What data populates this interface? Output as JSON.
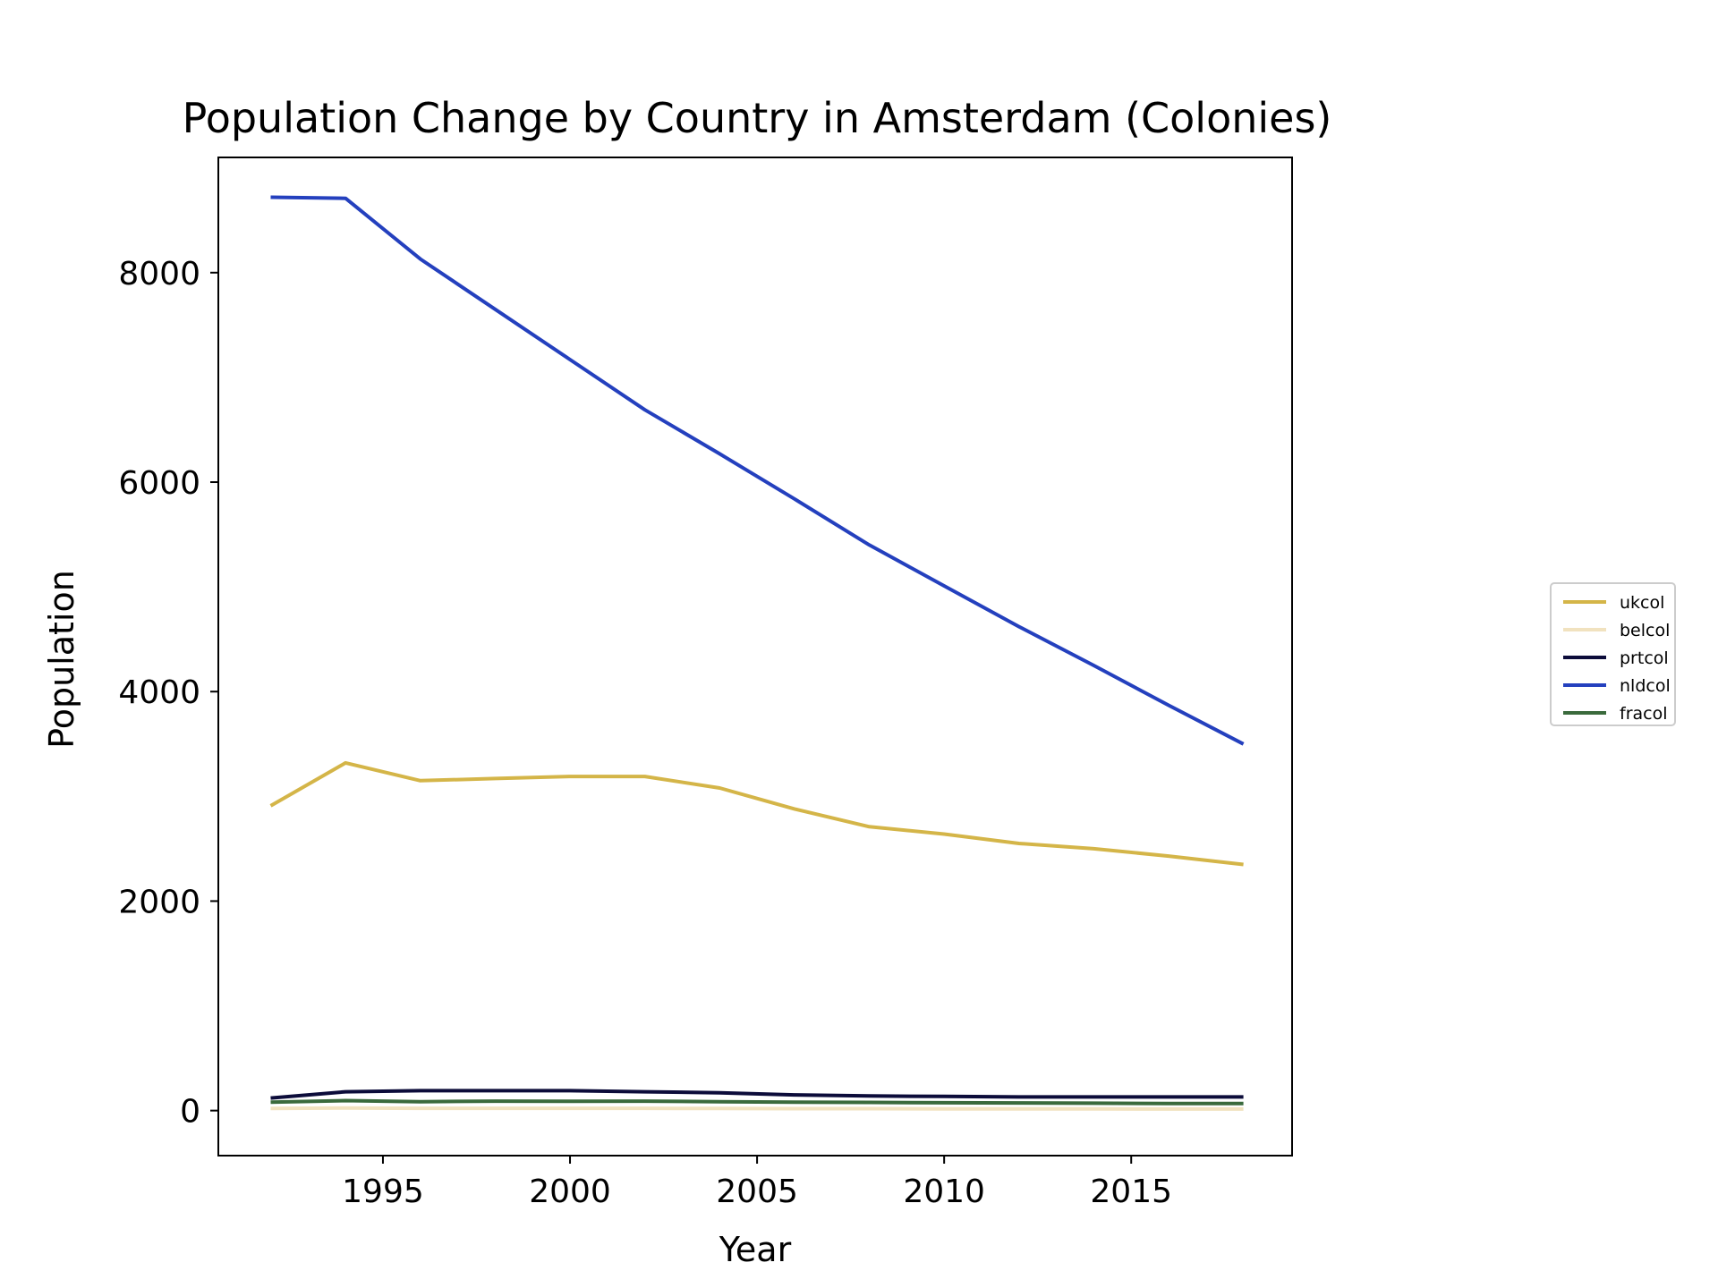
{
  "chart_data": {
    "type": "line",
    "title": "Population Change by Country in Amsterdam (Colonies)",
    "xlabel": "Year",
    "ylabel": "Population",
    "xlim": [
      1990.6,
      2019.3
    ],
    "ylim": [
      -430,
      9100
    ],
    "xticks": [
      1995,
      2000,
      2005,
      2010,
      2015
    ],
    "yticks": [
      0,
      2000,
      4000,
      6000,
      8000
    ],
    "grid": false,
    "legend_position": "right",
    "x": [
      1992,
      1994,
      1996,
      1998,
      2000,
      2002,
      2004,
      2006,
      2008,
      2010,
      2012,
      2014,
      2016,
      2018
    ],
    "series": [
      {
        "name": "ukcol",
        "color": "#d4b548",
        "values": [
          2910,
          3320,
          3150,
          3170,
          3190,
          3190,
          3080,
          2880,
          2710,
          2640,
          2550,
          2500,
          2430,
          2350
        ]
      },
      {
        "name": "belcol",
        "color": "#f1e2bf",
        "values": [
          20,
          25,
          22,
          22,
          22,
          22,
          20,
          18,
          18,
          17,
          16,
          16,
          15,
          15
        ]
      },
      {
        "name": "prtcol",
        "color": "#0c0c3a",
        "values": [
          120,
          180,
          190,
          190,
          190,
          180,
          170,
          150,
          140,
          135,
          130,
          130,
          130,
          130
        ]
      },
      {
        "name": "nldcol",
        "color": "#2440be",
        "values": [
          8720,
          8710,
          8130,
          7650,
          7170,
          6690,
          6270,
          5840,
          5400,
          5010,
          4620,
          4250,
          3870,
          3500
        ]
      },
      {
        "name": "fracol",
        "color": "#3a6a3c",
        "values": [
          80,
          95,
          85,
          90,
          88,
          90,
          85,
          80,
          78,
          75,
          73,
          70,
          68,
          68
        ]
      }
    ]
  }
}
